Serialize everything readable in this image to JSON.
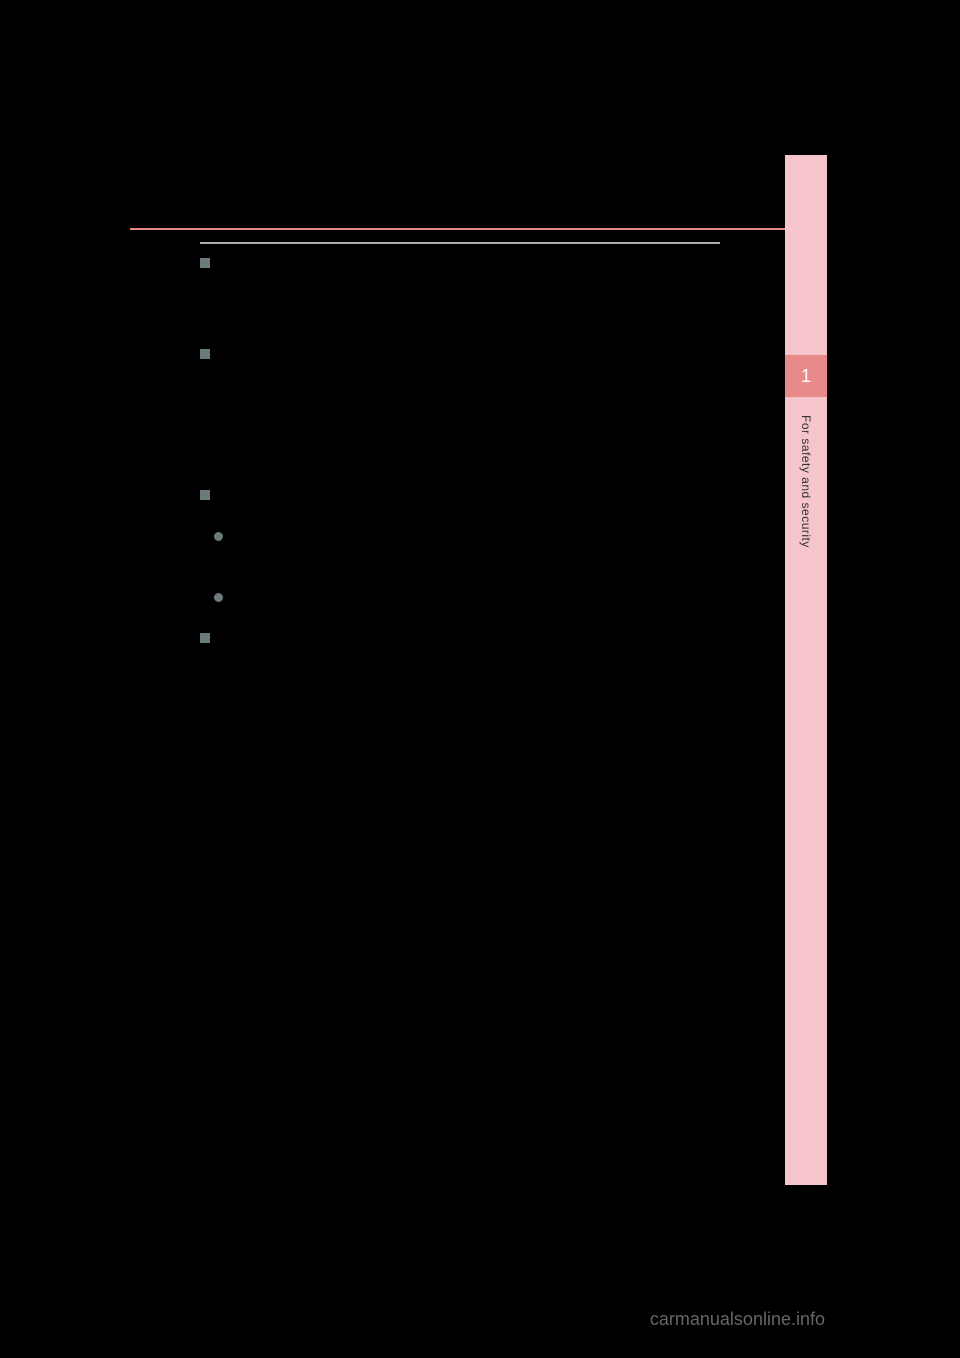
{
  "page": {
    "number": "",
    "section_title": ""
  },
  "sidebar": {
    "chapter_number": "1",
    "chapter_title": "For safety and security",
    "background_color": "#f5c5cb",
    "tab_color": "#e88a8a"
  },
  "divider": {
    "red_line_color": "#e88a8a",
    "gray_line_color": "#888888"
  },
  "content": {
    "items": [
      {
        "type": "square",
        "text": ""
      },
      {
        "type": "square",
        "text": ""
      },
      {
        "type": "square",
        "text": ""
      },
      {
        "type": "circle",
        "text": ""
      },
      {
        "type": "circle",
        "text": ""
      },
      {
        "type": "square",
        "text": ""
      }
    ]
  },
  "watermark": {
    "text": "carmanualsonline.info",
    "color": "#666666"
  },
  "colors": {
    "background": "#000000",
    "bullet": "#6b7a7a"
  }
}
